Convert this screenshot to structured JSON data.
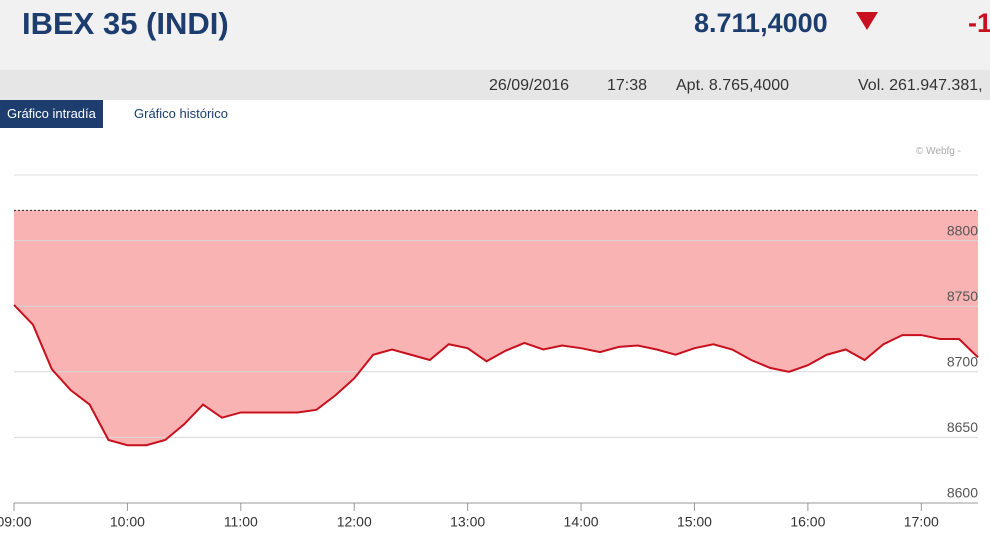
{
  "header": {
    "title": "IBEX 35 (INDI)",
    "price": "8.711,4000",
    "change": "-1"
  },
  "info": {
    "date": "26/09/2016",
    "time": "17:38",
    "open": "Apt. 8.765,4000",
    "volume": "Vol. 261.947.381,"
  },
  "tabs": [
    "Gráfico intradía",
    "Gráfico histórico"
  ],
  "watermark": "© Webfg -",
  "chart_data": {
    "type": "area",
    "x": [
      "09:00",
      "09:10",
      "09:20",
      "09:30",
      "09:40",
      "09:50",
      "10:00",
      "10:10",
      "10:20",
      "10:30",
      "10:40",
      "10:50",
      "11:00",
      "11:10",
      "11:20",
      "11:30",
      "11:40",
      "11:50",
      "12:00",
      "12:10",
      "12:20",
      "12:30",
      "12:40",
      "12:50",
      "13:00",
      "13:10",
      "13:20",
      "13:30",
      "13:40",
      "13:50",
      "14:00",
      "14:10",
      "14:20",
      "14:30",
      "14:40",
      "14:50",
      "15:00",
      "15:10",
      "15:20",
      "15:30",
      "15:40",
      "15:50",
      "16:00",
      "16:10",
      "16:20",
      "16:30",
      "16:40",
      "16:50",
      "17:00",
      "17:10",
      "17:20",
      "17:30"
    ],
    "values": [
      8751,
      8736,
      8702,
      8686,
      8675,
      8648,
      8644,
      8644,
      8648,
      8660,
      8675,
      8665,
      8669,
      8669,
      8669,
      8669,
      8671,
      8682,
      8695,
      8713,
      8717,
      8713,
      8709,
      8721,
      8718,
      8708,
      8716,
      8722,
      8717,
      8720,
      8718,
      8715,
      8719,
      8720,
      8717,
      8713,
      8718,
      8721,
      8717,
      8709,
      8703,
      8700,
      8705,
      8713,
      8717,
      8709,
      8721,
      8728,
      8728,
      8725,
      8725,
      8711
    ],
    "reference": 8823,
    "color": "#c8101e",
    "fill": "#f9b3b3",
    "xlim": [
      "09:00",
      "17:30"
    ],
    "xticks": [
      "09:00",
      "10:00",
      "11:00",
      "12:00",
      "13:00",
      "14:00",
      "15:00",
      "16:00",
      "17:00"
    ],
    "ylim": [
      8600,
      8850
    ],
    "yticks": [
      8600,
      8650,
      8700,
      8750,
      8800
    ],
    "grid": true
  }
}
